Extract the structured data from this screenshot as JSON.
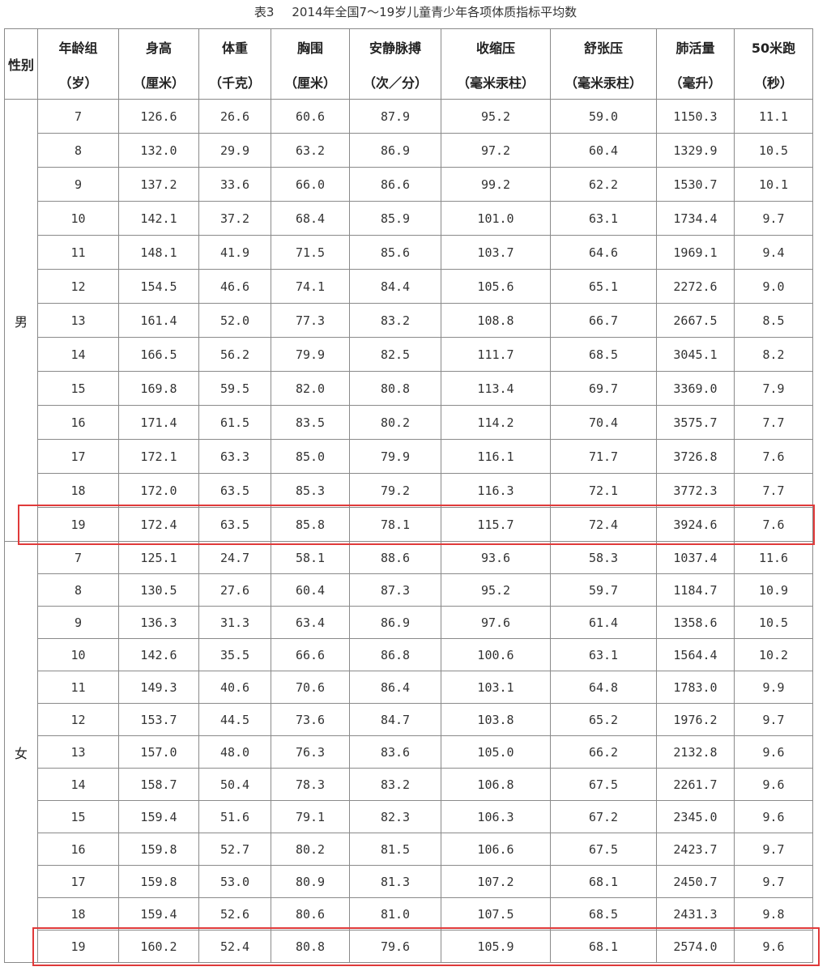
{
  "caption": {
    "label": "表3",
    "title": "2014年全国7～19岁儿童青少年各项体质指标平均数"
  },
  "columns": {
    "gender": "性别",
    "headers": [
      {
        "name": "年龄组",
        "unit": "（岁）"
      },
      {
        "name": "身高",
        "unit": "（厘米）"
      },
      {
        "name": "体重",
        "unit": "（千克）"
      },
      {
        "name": "胸围",
        "unit": "（厘米）"
      },
      {
        "name": "安静脉搏",
        "unit": "（次／分）"
      },
      {
        "name": "收缩压",
        "unit": "（毫米汞柱）"
      },
      {
        "name": "舒张压",
        "unit": "（毫米汞柱）"
      },
      {
        "name": "肺活量",
        "unit": "（毫升）"
      },
      {
        "name": "50米跑",
        "unit": "（秒）"
      }
    ]
  },
  "groups": [
    {
      "label": "男",
      "rows": [
        [
          "7",
          "126.6",
          "26.6",
          "60.6",
          "87.9",
          "95.2",
          "59.0",
          "1150.3",
          "11.1"
        ],
        [
          "8",
          "132.0",
          "29.9",
          "63.2",
          "86.9",
          "97.2",
          "60.4",
          "1329.9",
          "10.5"
        ],
        [
          "9",
          "137.2",
          "33.6",
          "66.0",
          "86.6",
          "99.2",
          "62.2",
          "1530.7",
          "10.1"
        ],
        [
          "10",
          "142.1",
          "37.2",
          "68.4",
          "85.9",
          "101.0",
          "63.1",
          "1734.4",
          "9.7"
        ],
        [
          "11",
          "148.1",
          "41.9",
          "71.5",
          "85.6",
          "103.7",
          "64.6",
          "1969.1",
          "9.4"
        ],
        [
          "12",
          "154.5",
          "46.6",
          "74.1",
          "84.4",
          "105.6",
          "65.1",
          "2272.6",
          "9.0"
        ],
        [
          "13",
          "161.4",
          "52.0",
          "77.3",
          "83.2",
          "108.8",
          "66.7",
          "2667.5",
          "8.5"
        ],
        [
          "14",
          "166.5",
          "56.2",
          "79.9",
          "82.5",
          "111.7",
          "68.5",
          "3045.1",
          "8.2"
        ],
        [
          "15",
          "169.8",
          "59.5",
          "82.0",
          "80.8",
          "113.4",
          "69.7",
          "3369.0",
          "7.9"
        ],
        [
          "16",
          "171.4",
          "61.5",
          "83.5",
          "80.2",
          "114.2",
          "70.4",
          "3575.7",
          "7.7"
        ],
        [
          "17",
          "172.1",
          "63.3",
          "85.0",
          "79.9",
          "116.1",
          "71.7",
          "3726.8",
          "7.6"
        ],
        [
          "18",
          "172.0",
          "63.5",
          "85.3",
          "79.2",
          "116.3",
          "72.1",
          "3772.3",
          "7.7"
        ],
        [
          "19",
          "172.4",
          "63.5",
          "85.8",
          "78.1",
          "115.7",
          "72.4",
          "3924.6",
          "7.6"
        ]
      ]
    },
    {
      "label": "女",
      "rows": [
        [
          "7",
          "125.1",
          "24.7",
          "58.1",
          "88.6",
          "93.6",
          "58.3",
          "1037.4",
          "11.6"
        ],
        [
          "8",
          "130.5",
          "27.6",
          "60.4",
          "87.3",
          "95.2",
          "59.7",
          "1184.7",
          "10.9"
        ],
        [
          "9",
          "136.3",
          "31.3",
          "63.4",
          "86.9",
          "97.6",
          "61.4",
          "1358.6",
          "10.5"
        ],
        [
          "10",
          "142.6",
          "35.5",
          "66.6",
          "86.8",
          "100.6",
          "63.1",
          "1564.4",
          "10.2"
        ],
        [
          "11",
          "149.3",
          "40.6",
          "70.6",
          "86.4",
          "103.1",
          "64.8",
          "1783.0",
          "9.9"
        ],
        [
          "12",
          "153.7",
          "44.5",
          "73.6",
          "84.7",
          "103.8",
          "65.2",
          "1976.2",
          "9.7"
        ],
        [
          "13",
          "157.0",
          "48.0",
          "76.3",
          "83.6",
          "105.0",
          "66.2",
          "2132.8",
          "9.6"
        ],
        [
          "14",
          "158.7",
          "50.4",
          "78.3",
          "83.2",
          "106.8",
          "67.5",
          "2261.7",
          "9.6"
        ],
        [
          "15",
          "159.4",
          "51.6",
          "79.1",
          "82.3",
          "106.3",
          "67.2",
          "2345.0",
          "9.6"
        ],
        [
          "16",
          "159.8",
          "52.7",
          "80.2",
          "81.5",
          "106.6",
          "67.5",
          "2423.7",
          "9.7"
        ],
        [
          "17",
          "159.8",
          "53.0",
          "80.9",
          "81.3",
          "107.2",
          "68.1",
          "2450.7",
          "9.7"
        ],
        [
          "18",
          "159.4",
          "52.6",
          "80.6",
          "81.0",
          "107.5",
          "68.5",
          "2431.3",
          "9.8"
        ],
        [
          "19",
          "160.2",
          "52.4",
          "80.8",
          "79.6",
          "105.9",
          "68.1",
          "2574.0",
          "9.6"
        ]
      ]
    }
  ],
  "highlight": {
    "color": "#e03a3a",
    "rows": [
      {
        "group": 0,
        "row": 12
      },
      {
        "group": 1,
        "row": 12
      }
    ]
  }
}
